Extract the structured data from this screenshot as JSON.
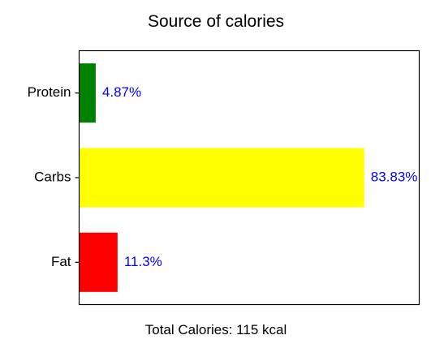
{
  "chart_data": {
    "type": "bar",
    "orientation": "horizontal",
    "title": "Source of calories",
    "categories": [
      "Fat",
      "Carbs",
      "Protein"
    ],
    "values": [
      11.3,
      83.83,
      4.87
    ],
    "labels": [
      "11.3%",
      "83.83%",
      "4.87%"
    ],
    "colors": [
      "#ff0000",
      "#ffff00",
      "#008000"
    ],
    "label_color": "#0000ff",
    "xlim": [
      0,
      100
    ],
    "x_ticks_visible": false,
    "grid": false,
    "legend": "none",
    "footer_text": "Total Calories: 115 kcal"
  }
}
